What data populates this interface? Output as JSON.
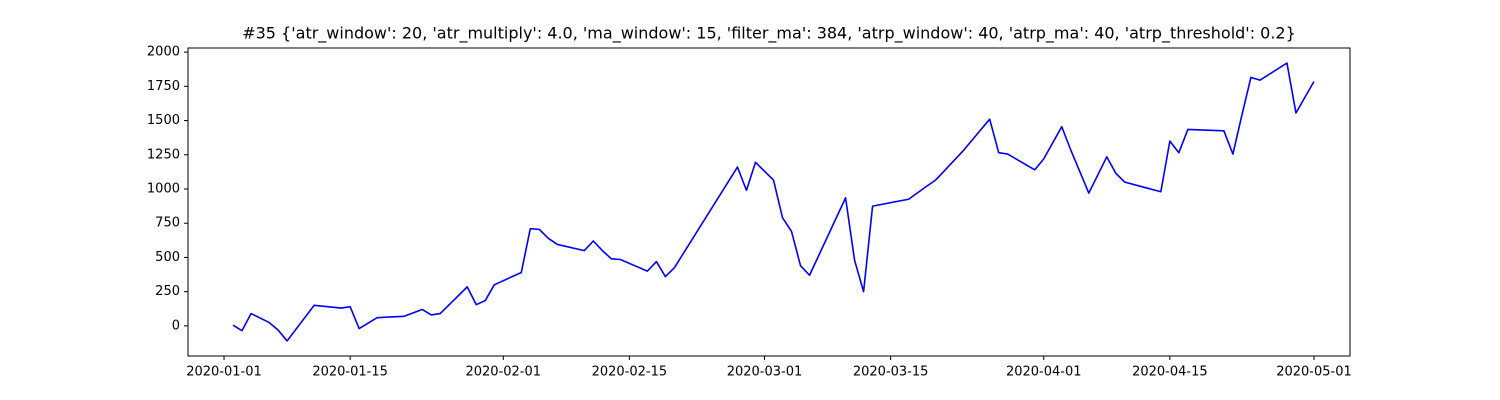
{
  "chart_data": {
    "type": "line",
    "title": "#35 {'atr_window': 20, 'atr_multiply': 4.0, 'ma_window': 15, 'filter_ma': 384, 'atrp_window': 40, 'atrp_ma': 40, 'atrp_threshold': 0.2}",
    "x": [
      "2020-01-02",
      "2020-01-03",
      "2020-01-04",
      "2020-01-06",
      "2020-01-07",
      "2020-01-08",
      "2020-01-11",
      "2020-01-14",
      "2020-01-15",
      "2020-01-16",
      "2020-01-18",
      "2020-01-21",
      "2020-01-23",
      "2020-01-24",
      "2020-01-25",
      "2020-01-28",
      "2020-01-29",
      "2020-01-30",
      "2020-01-31",
      "2020-02-03",
      "2020-02-04",
      "2020-02-05",
      "2020-02-06",
      "2020-02-07",
      "2020-02-10",
      "2020-02-11",
      "2020-02-12",
      "2020-02-13",
      "2020-02-14",
      "2020-02-17",
      "2020-02-18",
      "2020-02-19",
      "2020-02-20",
      "2020-02-27",
      "2020-02-28",
      "2020-02-29",
      "2020-03-02",
      "2020-03-03",
      "2020-03-04",
      "2020-03-05",
      "2020-03-06",
      "2020-03-10",
      "2020-03-11",
      "2020-03-12",
      "2020-03-13",
      "2020-03-17",
      "2020-03-19",
      "2020-03-20",
      "2020-03-23",
      "2020-03-26",
      "2020-03-27",
      "2020-03-28",
      "2020-03-31",
      "2020-04-01",
      "2020-04-03",
      "2020-04-04",
      "2020-04-06",
      "2020-04-08",
      "2020-04-09",
      "2020-04-10",
      "2020-04-14",
      "2020-04-15",
      "2020-04-16",
      "2020-04-17",
      "2020-04-21",
      "2020-04-22",
      "2020-04-23",
      "2020-04-24",
      "2020-04-25",
      "2020-04-28",
      "2020-04-29",
      "2020-05-01"
    ],
    "series": [
      {
        "color": "#0000ff",
        "values": [
          5,
          -35,
          90,
          25,
          -30,
          -110,
          150,
          130,
          140,
          -20,
          60,
          70,
          120,
          80,
          90,
          285,
          155,
          185,
          300,
          390,
          710,
          705,
          640,
          595,
          550,
          620,
          550,
          490,
          485,
          400,
          470,
          360,
          425,
          1160,
          990,
          1195,
          1065,
          790,
          690,
          440,
          370,
          935,
          480,
          250,
          875,
          925,
          1020,
          1065,
          1275,
          1510,
          1265,
          1255,
          1140,
          1220,
          1455,
          1285,
          970,
          1235,
          1115,
          1050,
          980,
          1350,
          1265,
          1435,
          1425,
          1255,
          1540,
          1815,
          1795,
          1920,
          1555,
          1785
        ]
      }
    ],
    "xlim": [
      "2019-12-28",
      "2020-05-05"
    ],
    "xticks": [
      "2020-01-01",
      "2020-01-15",
      "2020-02-01",
      "2020-02-15",
      "2020-03-01",
      "2020-03-15",
      "2020-04-01",
      "2020-04-15",
      "2020-05-01"
    ],
    "ylim": [
      -220,
      2030
    ],
    "yticks": [
      0,
      250,
      500,
      750,
      1000,
      1250,
      1500,
      1750,
      2000
    ],
    "grid": false
  }
}
